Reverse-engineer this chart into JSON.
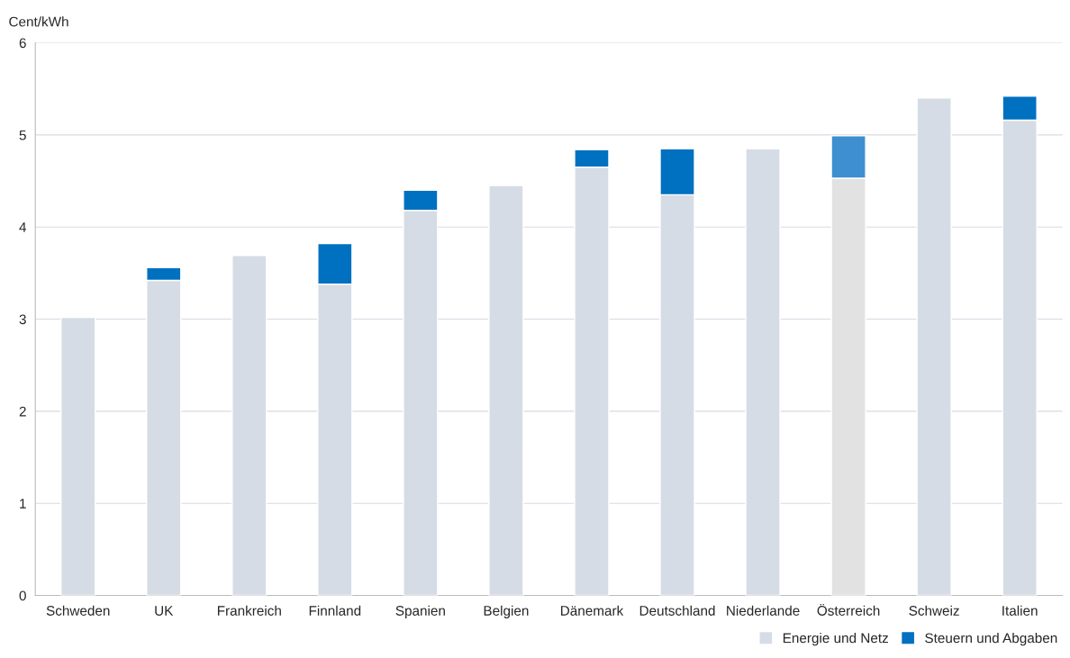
{
  "chart_data": {
    "type": "bar",
    "stacked": true,
    "ylabel": "Cent/kWh",
    "categories": [
      "Schweden",
      "UK",
      "Frankreich",
      "Finnland",
      "Spanien",
      "Belgien",
      "Dänemark",
      "Deutschland",
      "Niederlande",
      "Österreich",
      "Schweiz",
      "Italien"
    ],
    "series": [
      {
        "name": "Energie und Netz",
        "color": "#d6dce5",
        "colors": [
          "#d6dce5",
          "#d6dce5",
          "#d6dce5",
          "#d6dce5",
          "#d6dce5",
          "#d6dce5",
          "#d6dce5",
          "#d6dce5",
          "#d6dce5",
          "#e2e2e2",
          "#d6dce5",
          "#d6dce5"
        ],
        "values": [
          3.02,
          3.42,
          3.69,
          3.38,
          4.18,
          4.45,
          4.65,
          4.35,
          4.85,
          4.53,
          5.4,
          5.16
        ]
      },
      {
        "name": "Steuern und Abgaben",
        "color": "#0070c0",
        "colors": [
          "#0070c0",
          "#0070c0",
          "#0070c0",
          "#0070c0",
          "#0070c0",
          "#0070c0",
          "#0070c0",
          "#0070c0",
          "#0070c0",
          "#3d8fd0",
          "#0070c0",
          "#0070c0"
        ],
        "values": [
          null,
          0.14,
          null,
          0.44,
          0.22,
          null,
          0.19,
          0.5,
          null,
          0.46,
          null,
          0.26
        ]
      }
    ],
    "ylim": [
      0,
      6
    ],
    "yticks": [
      0,
      1,
      2,
      3,
      4,
      5,
      6
    ],
    "grid": "y",
    "legend": "bottom right"
  }
}
